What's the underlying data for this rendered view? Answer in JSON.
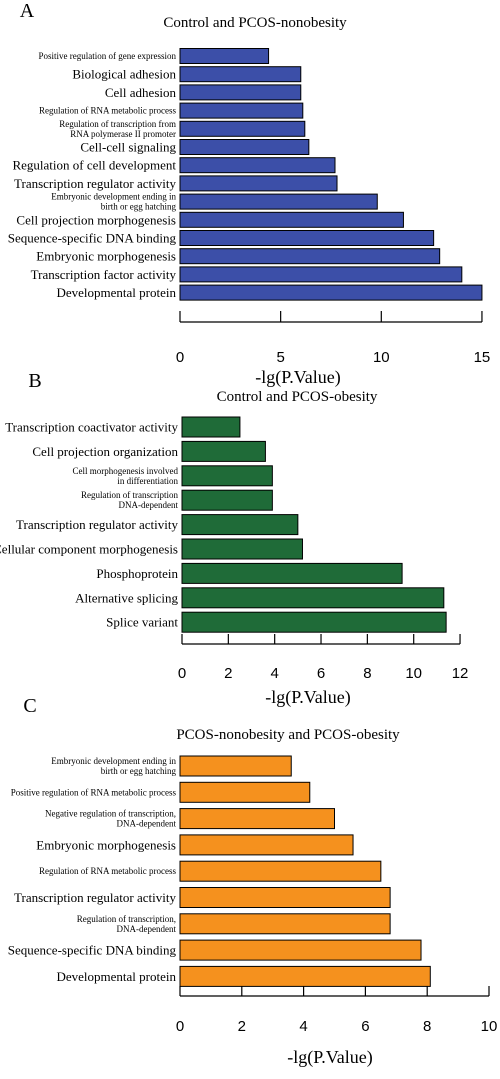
{
  "chart_data": [
    {
      "type": "bar",
      "orientation": "horizontal",
      "panel": "A",
      "title": "Control and PCOS-nonobesity",
      "xlabel": "-lg(P.Value)",
      "xlim": [
        0,
        15
      ],
      "xticks": [
        0,
        5,
        10,
        15
      ],
      "color": "#3c4fa8",
      "grid": false,
      "categories": [
        "Positive regulation of gene expression",
        "Biological adhesion",
        "Cell adhesion",
        "Regulation of RNA metabolic process",
        "Regulation of transcription from\nRNA polymerase II promoter",
        "Cell-cell signaling",
        "Regulation of cell development",
        "Transcription regulator activity",
        "Embryonic development ending in\nbirth or egg hatching",
        "Cell projection morphogenesis",
        "Sequence-specific DNA binding",
        "Embryonic morphogenesis",
        "Transcription factor activity",
        "Developmental protein"
      ],
      "small_label": [
        true,
        false,
        false,
        true,
        true,
        false,
        false,
        false,
        true,
        false,
        false,
        false,
        false,
        false
      ],
      "values": [
        4.4,
        6.0,
        6.0,
        6.1,
        6.2,
        6.4,
        7.7,
        7.8,
        9.8,
        11.1,
        12.6,
        12.9,
        14.0,
        15.0
      ]
    },
    {
      "type": "bar",
      "orientation": "horizontal",
      "panel": "B",
      "title": "Control and PCOS-obesity",
      "xlabel": "-lg(P.Value)",
      "xlim": [
        0,
        12
      ],
      "xticks": [
        0,
        2,
        4,
        6,
        8,
        10,
        12
      ],
      "color": "#1f6b38",
      "grid": false,
      "categories": [
        "Transcription coactivator activity",
        "Cell projection organization",
        "Cell morphogenesis involved\nin differentiation",
        "Regulation of transcription\nDNA-dependent",
        "Transcription regulator activity",
        "Cellular component morphogenesis",
        "Phosphoprotein",
        "Alternative splicing",
        "Splice variant"
      ],
      "small_label": [
        false,
        false,
        true,
        true,
        false,
        false,
        false,
        false,
        false
      ],
      "values": [
        2.5,
        3.6,
        3.9,
        3.9,
        5.0,
        5.2,
        9.5,
        11.3,
        11.4
      ]
    },
    {
      "type": "bar",
      "orientation": "horizontal",
      "panel": "C",
      "title": "PCOS-nonobesity and PCOS-obesity",
      "xlabel": "-lg(P.Value)",
      "xlim": [
        0,
        10
      ],
      "xticks": [
        0,
        2,
        4,
        6,
        8,
        10
      ],
      "color": "#f5911e",
      "grid": false,
      "categories": [
        "Embryonic development ending in\nbirth or egg hatching",
        "Positive regulation of RNA metabolic process",
        "Negative regulation of transcription,\nDNA-dependent",
        "Embryonic morphogenesis",
        "Regulation of RNA metabolic process",
        "Transcription regulator activity",
        "Regulation of transcription,\nDNA-dependent",
        "Sequence-specific DNA binding",
        "Developmental protein"
      ],
      "small_label": [
        true,
        true,
        true,
        false,
        true,
        false,
        true,
        false,
        false
      ],
      "values": [
        3.6,
        4.2,
        5.0,
        5.6,
        6.5,
        6.8,
        6.8,
        7.8,
        8.1
      ]
    }
  ]
}
